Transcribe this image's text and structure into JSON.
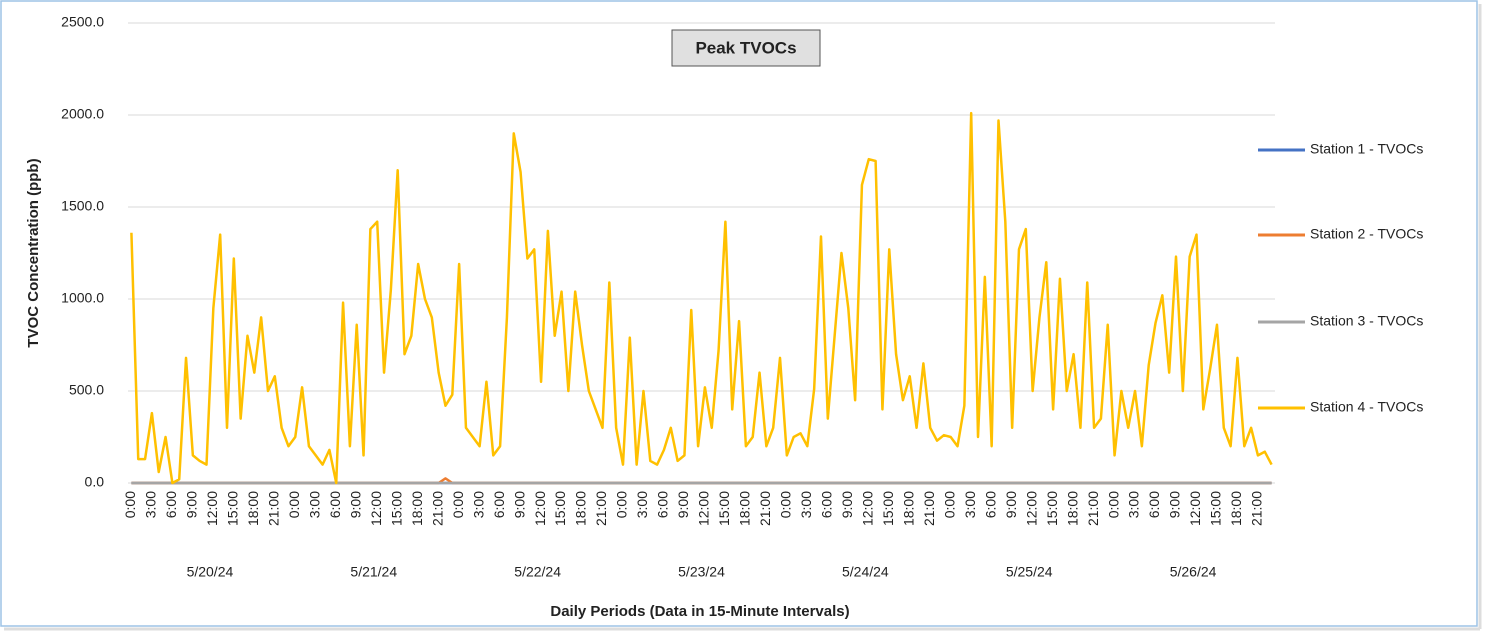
{
  "chart_data": {
    "type": "line",
    "title": "Peak TVOCs",
    "y_axis_label": "TVOC Concentration (ppb)",
    "x_axis_label": "Daily Periods (Data in 15-Minute Intervals)",
    "ylim": [
      0,
      2500
    ],
    "yticks": [
      {
        "value": 0,
        "label": "0.0"
      },
      {
        "value": 500,
        "label": "500.0"
      },
      {
        "value": 1000,
        "label": "1000.0"
      },
      {
        "value": 1500,
        "label": "1500.0"
      },
      {
        "value": 2000,
        "label": "2000.0"
      },
      {
        "value": 2500,
        "label": "2500.0"
      }
    ],
    "grid": true,
    "legend": "right",
    "date_groups": [
      "5/20/24",
      "5/21/24",
      "5/22/24",
      "5/23/24",
      "5/24/24",
      "5/25/24",
      "5/26/24"
    ],
    "categories": [
      "0:00",
      null,
      null,
      "3:00",
      null,
      null,
      "6:00",
      null,
      null,
      "9:00",
      null,
      null,
      "12:00",
      null,
      null,
      "15:00",
      null,
      null,
      "18:00",
      null,
      null,
      "21:00",
      null,
      null,
      "0:00",
      null,
      null,
      "3:00",
      null,
      null,
      "6:00",
      null,
      null,
      "9:00",
      null,
      null,
      "12:00",
      null,
      null,
      "15:00",
      null,
      null,
      "18:00",
      null,
      null,
      "21:00",
      null,
      null,
      "0:00",
      null,
      null,
      "3:00",
      null,
      null,
      "6:00",
      null,
      null,
      "9:00",
      null,
      null,
      "12:00",
      null,
      null,
      "15:00",
      null,
      null,
      "18:00",
      null,
      null,
      "21:00",
      null,
      null,
      "0:00",
      null,
      null,
      "3:00",
      null,
      null,
      "6:00",
      null,
      null,
      "9:00",
      null,
      null,
      "12:00",
      null,
      null,
      "15:00",
      null,
      null,
      "18:00",
      null,
      null,
      "21:00",
      null,
      null,
      "0:00",
      null,
      null,
      "3:00",
      null,
      null,
      "6:00",
      null,
      null,
      "9:00",
      null,
      null,
      "12:00",
      null,
      null,
      "15:00",
      null,
      null,
      "18:00",
      null,
      null,
      "21:00",
      null,
      null,
      "0:00",
      null,
      null,
      "3:00",
      null,
      null,
      "6:00",
      null,
      null,
      "9:00",
      null,
      null,
      "12:00",
      null,
      null,
      "15:00",
      null,
      null,
      "18:00",
      null,
      null,
      "21:00",
      null,
      null,
      "0:00",
      null,
      null,
      "3:00",
      null,
      null,
      "6:00",
      null,
      null,
      "9:00",
      null,
      null,
      "12:00",
      null,
      null,
      "15:00",
      null,
      null,
      "18:00",
      null,
      null,
      "21:00",
      null,
      null
    ],
    "series": [
      {
        "name": "Station 1 - TVOCs",
        "color": "#4472c4",
        "values": [
          0,
          0,
          0,
          0,
          0,
          0,
          0,
          0,
          0,
          0,
          0,
          0,
          0,
          0,
          0,
          0,
          0,
          0,
          0,
          0,
          0,
          0,
          0,
          0,
          0,
          0,
          0,
          0,
          0,
          0,
          0,
          0,
          0,
          0,
          0,
          0,
          0,
          0,
          0,
          0,
          0,
          0,
          0,
          0,
          0,
          0,
          0,
          0,
          0,
          0,
          0,
          0,
          0,
          0,
          0,
          0,
          0,
          0,
          0,
          0,
          0,
          0,
          0,
          0,
          0,
          0,
          0,
          0,
          0,
          0,
          0,
          0,
          0,
          0,
          0,
          0,
          0,
          0,
          0,
          0,
          0,
          0,
          0,
          0,
          0,
          0,
          0,
          0,
          0,
          0,
          0,
          0,
          0,
          0,
          0,
          0,
          0,
          0,
          0,
          0,
          0,
          0,
          0,
          0,
          0,
          0,
          0,
          0,
          0,
          0,
          0,
          0,
          0,
          0,
          0,
          0,
          0,
          0,
          0,
          0,
          0,
          0,
          0,
          0,
          0,
          0,
          0,
          0,
          0,
          0,
          0,
          0,
          0,
          0,
          0,
          0,
          0,
          0,
          0,
          0,
          0,
          0,
          0,
          0,
          0,
          0,
          0,
          0,
          0,
          0,
          0,
          0,
          0,
          0,
          0,
          0,
          0,
          0,
          0,
          0,
          0,
          0,
          0,
          0,
          0,
          0,
          0,
          0
        ]
      },
      {
        "name": "Station 2 - TVOCs",
        "color": "#ed7d31",
        "values": [
          0,
          0,
          0,
          0,
          0,
          0,
          0,
          0,
          0,
          0,
          0,
          0,
          0,
          0,
          0,
          0,
          0,
          0,
          0,
          0,
          0,
          0,
          0,
          0,
          0,
          0,
          0,
          0,
          0,
          0,
          0,
          0,
          0,
          0,
          0,
          0,
          0,
          0,
          0,
          0,
          0,
          0,
          0,
          0,
          0,
          0,
          25,
          0,
          0,
          0,
          0,
          0,
          0,
          0,
          0,
          0,
          0,
          0,
          0,
          0,
          0,
          0,
          0,
          0,
          0,
          0,
          0,
          0,
          0,
          0,
          0,
          0,
          0,
          0,
          0,
          0,
          0,
          0,
          0,
          0,
          0,
          0,
          0,
          0,
          0,
          0,
          0,
          0,
          0,
          0,
          0,
          0,
          0,
          0,
          0,
          0,
          0,
          0,
          0,
          0,
          0,
          0,
          0,
          0,
          0,
          0,
          0,
          0,
          0,
          0,
          0,
          0,
          0,
          0,
          0,
          0,
          0,
          0,
          0,
          0,
          0,
          0,
          0,
          0,
          0,
          0,
          0,
          0,
          0,
          0,
          0,
          0,
          0,
          0,
          0,
          0,
          0,
          0,
          0,
          0,
          0,
          0,
          0,
          0,
          0,
          0,
          0,
          0,
          0,
          0,
          0,
          0,
          0,
          0,
          0,
          0,
          0,
          0,
          0,
          0,
          0,
          0,
          0,
          0,
          0,
          0,
          0,
          0
        ]
      },
      {
        "name": "Station 3 - TVOCs",
        "color": "#a5a5a5",
        "values": [
          0,
          0,
          0,
          0,
          0,
          0,
          0,
          0,
          0,
          0,
          0,
          0,
          0,
          0,
          0,
          0,
          0,
          0,
          0,
          0,
          0,
          0,
          0,
          0,
          0,
          0,
          0,
          0,
          0,
          0,
          0,
          0,
          0,
          0,
          0,
          0,
          0,
          0,
          0,
          0,
          0,
          0,
          0,
          0,
          0,
          0,
          0,
          0,
          0,
          0,
          0,
          0,
          0,
          0,
          0,
          0,
          0,
          0,
          0,
          0,
          0,
          0,
          0,
          0,
          0,
          0,
          0,
          0,
          0,
          0,
          0,
          0,
          0,
          0,
          0,
          0,
          0,
          0,
          0,
          0,
          0,
          0,
          0,
          0,
          0,
          0,
          0,
          0,
          0,
          0,
          0,
          0,
          0,
          0,
          0,
          0,
          0,
          0,
          0,
          0,
          0,
          0,
          0,
          0,
          0,
          0,
          0,
          0,
          0,
          0,
          0,
          0,
          0,
          0,
          0,
          0,
          0,
          0,
          0,
          0,
          0,
          0,
          0,
          0,
          0,
          0,
          0,
          0,
          0,
          0,
          0,
          0,
          0,
          0,
          0,
          0,
          0,
          0,
          0,
          0,
          0,
          0,
          0,
          0,
          0,
          0,
          0,
          0,
          0,
          0,
          0,
          0,
          0,
          0,
          0,
          0,
          0,
          0,
          0,
          0,
          0,
          0,
          0,
          0,
          0,
          0,
          0,
          0
        ]
      },
      {
        "name": "Station 4 - TVOCs",
        "color": "#ffc000",
        "values": [
          1360,
          130,
          130,
          380,
          60,
          250,
          0,
          20,
          680,
          150,
          120,
          100,
          950,
          1350,
          300,
          1220,
          350,
          800,
          600,
          900,
          500,
          580,
          300,
          200,
          250,
          520,
          200,
          150,
          100,
          180,
          0,
          980,
          200,
          860,
          150,
          1380,
          1420,
          600,
          1050,
          1700,
          700,
          800,
          1190,
          1000,
          900,
          600,
          420,
          480,
          1190,
          300,
          250,
          200,
          550,
          150,
          200,
          900,
          1900,
          1690,
          1220,
          1270,
          550,
          1370,
          800,
          1040,
          500,
          1040,
          750,
          500,
          400,
          300,
          1090,
          300,
          100,
          790,
          100,
          500,
          120,
          100,
          180,
          300,
          120,
          150,
          940,
          200,
          520,
          300,
          720,
          1420,
          400,
          880,
          200,
          250,
          600,
          200,
          300,
          680,
          150,
          250,
          270,
          200,
          510,
          1340,
          350,
          800,
          1250,
          950,
          450,
          1620,
          1760,
          1750,
          400,
          1270,
          700,
          450,
          580,
          300,
          650,
          300,
          230,
          260,
          250,
          200,
          420,
          2010,
          250,
          1120,
          200,
          1970,
          1420,
          300,
          1270,
          1380,
          500,
          900,
          1200,
          400,
          1110,
          500,
          700,
          300,
          1090,
          300,
          350,
          860,
          150,
          500,
          300,
          500,
          200,
          640,
          870,
          1020,
          600,
          1230,
          500,
          1230,
          1350,
          400,
          620,
          860,
          300,
          200,
          680,
          200,
          300,
          150,
          170,
          100
        ]
      }
    ]
  }
}
